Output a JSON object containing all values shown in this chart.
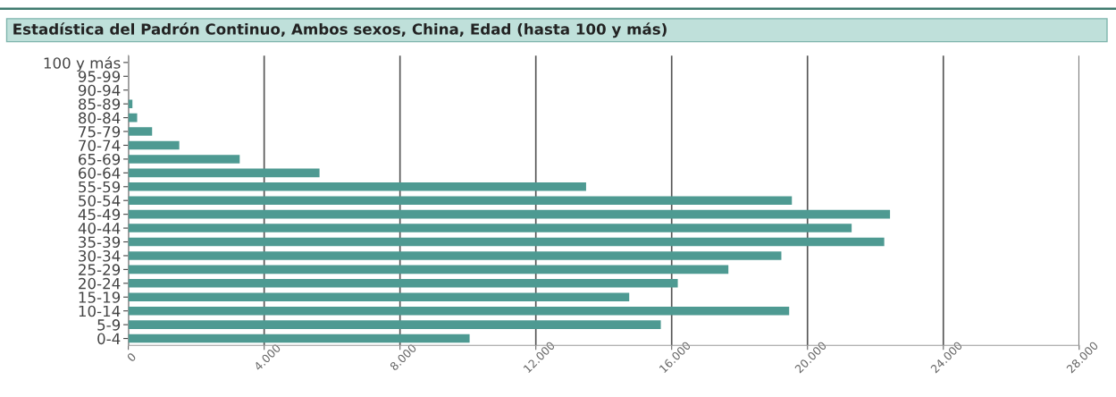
{
  "chart_data": {
    "type": "bar",
    "orientation": "horizontal",
    "title": "Estadística del Padrón Continuo, Ambos sexos, China, Edad (hasta 100 y más)",
    "categories": [
      "100 y más",
      "95-99",
      "90-94",
      "85-89",
      "80-84",
      "75-79",
      "70-74",
      "65-69",
      "60-64",
      "55-59",
      "50-54",
      "45-49",
      "40-44",
      "35-39",
      "30-34",
      "25-29",
      "20-24",
      "15-19",
      "10-14",
      "5-9",
      "0-4"
    ],
    "series": [
      {
        "color": "#4e9a92",
        "values": [
          0,
          0,
          0,
          120,
          260,
          700,
          1500,
          3280,
          5630,
          13480,
          19540,
          22430,
          21300,
          22260,
          19230,
          17670,
          16180,
          14750,
          19460,
          15680,
          10050
        ]
      }
    ],
    "xlim": [
      0,
      28000
    ],
    "xticks": [
      0,
      {
        "value": 4000,
        "label": "4.000"
      },
      {
        "value": 8000,
        "label": "8.000"
      },
      {
        "value": 12000,
        "label": "12.000"
      },
      {
        "value": 16000,
        "label": "16.000"
      },
      {
        "value": 20000,
        "label": "20.000"
      },
      {
        "value": 24000,
        "label": "24.000"
      },
      {
        "value": 28000,
        "label": "28.000"
      }
    ],
    "grid": "x",
    "legend": false
  }
}
